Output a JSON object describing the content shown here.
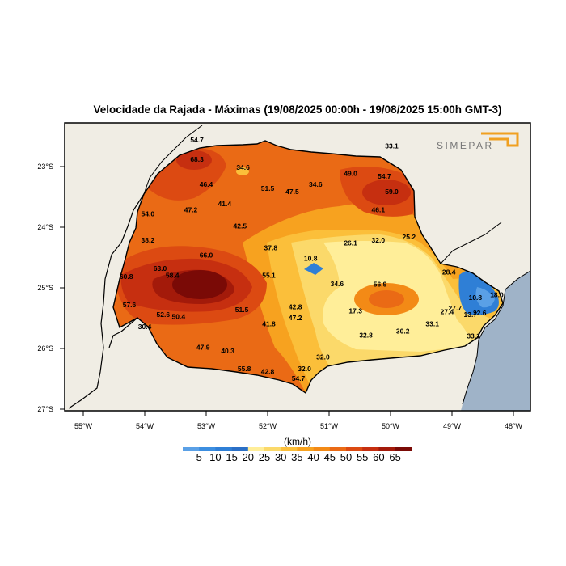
{
  "title": "Velocidade da Rajada - Máximas (19/08/2025 00:00h - 19/08/2025 15:00h GMT-3)",
  "logo_text": "SIMEPAR",
  "colors": {
    "land": "#f0ede4",
    "ocean": "#9fb3c8",
    "border": "#000000"
  },
  "lat_ticks": [
    "23°S",
    "24°S",
    "25°S",
    "26°S",
    "27°S"
  ],
  "lon_ticks": [
    "55°W",
    "54°W",
    "53°W",
    "52°W",
    "51°W",
    "50°W",
    "49°W",
    "48°W"
  ],
  "colorbar": {
    "unit": "(km/h)",
    "labels": [
      "5",
      "10",
      "15",
      "20",
      "25",
      "30",
      "35",
      "40",
      "45",
      "50",
      "55",
      "60",
      "65"
    ],
    "colors": [
      "#5aa0e6",
      "#3c8ee0",
      "#2f7fd6",
      "#2a6fc6",
      "#ffee99",
      "#fbd96a",
      "#fbbf3a",
      "#f7a21f",
      "#f38a16",
      "#ea6a15",
      "#dc4a12",
      "#c62f10",
      "#a31a0a",
      "#7a0a06"
    ]
  },
  "values": [
    {
      "text": "54.7",
      "lon": -53.15,
      "lat": -22.6
    },
    {
      "text": "68.3",
      "lon": -53.15,
      "lat": -22.92
    },
    {
      "text": "34.6",
      "lon": -52.4,
      "lat": -23.05
    },
    {
      "text": "46.4",
      "lon": -53.0,
      "lat": -23.33
    },
    {
      "text": "51.5",
      "lon": -52.0,
      "lat": -23.4
    },
    {
      "text": "47.5",
      "lon": -51.6,
      "lat": -23.45
    },
    {
      "text": "34.6",
      "lon": -51.22,
      "lat": -23.33
    },
    {
      "text": "49.0",
      "lon": -50.65,
      "lat": -23.15
    },
    {
      "text": "54.7",
      "lon": -50.1,
      "lat": -23.2
    },
    {
      "text": "59.0",
      "lon": -49.98,
      "lat": -23.45
    },
    {
      "text": "33.1",
      "lon": -49.98,
      "lat": -22.7
    },
    {
      "text": "47.2",
      "lon": -53.25,
      "lat": -23.75
    },
    {
      "text": "41.4",
      "lon": -52.7,
      "lat": -23.65
    },
    {
      "text": "46.1",
      "lon": -50.2,
      "lat": -23.75
    },
    {
      "text": "54.0",
      "lon": -53.95,
      "lat": -23.82
    },
    {
      "text": "42.5",
      "lon": -52.45,
      "lat": -24.02
    },
    {
      "text": "25.2",
      "lon": -49.7,
      "lat": -24.2
    },
    {
      "text": "38.2",
      "lon": -53.95,
      "lat": -24.25
    },
    {
      "text": "26.1",
      "lon": -50.65,
      "lat": -24.3
    },
    {
      "text": "32.0",
      "lon": -50.2,
      "lat": -24.25
    },
    {
      "text": "37.8",
      "lon": -51.95,
      "lat": -24.38
    },
    {
      "text": "10.8",
      "lon": -51.3,
      "lat": -24.55
    },
    {
      "text": "66.0",
      "lon": -53.0,
      "lat": -24.5
    },
    {
      "text": "63.0",
      "lon": -53.75,
      "lat": -24.72
    },
    {
      "text": "60.8",
      "lon": -54.3,
      "lat": -24.85
    },
    {
      "text": "58.4",
      "lon": -53.55,
      "lat": -24.83
    },
    {
      "text": "55.1",
      "lon": -51.98,
      "lat": -24.83
    },
    {
      "text": "28.4",
      "lon": -49.05,
      "lat": -24.78
    },
    {
      "text": "34.6",
      "lon": -50.87,
      "lat": -24.97
    },
    {
      "text": "56.9",
      "lon": -50.17,
      "lat": -24.98
    },
    {
      "text": "10.8",
      "lon": -48.62,
      "lat": -25.2
    },
    {
      "text": "18.0",
      "lon": -48.27,
      "lat": -25.15
    },
    {
      "text": "57.6",
      "lon": -54.25,
      "lat": -25.32
    },
    {
      "text": "42.8",
      "lon": -51.55,
      "lat": -25.35
    },
    {
      "text": "51.5",
      "lon": -52.42,
      "lat": -25.4
    },
    {
      "text": "17.3",
      "lon": -50.57,
      "lat": -25.42
    },
    {
      "text": "27.7",
      "lon": -48.95,
      "lat": -25.37
    },
    {
      "text": "27.4",
      "lon": -49.08,
      "lat": -25.43
    },
    {
      "text": "52.6",
      "lon": -53.7,
      "lat": -25.48
    },
    {
      "text": "50.4",
      "lon": -53.45,
      "lat": -25.51
    },
    {
      "text": "47.2",
      "lon": -51.55,
      "lat": -25.53
    },
    {
      "text": "13.7",
      "lon": -48.7,
      "lat": -25.48
    },
    {
      "text": "22.6",
      "lon": -48.55,
      "lat": -25.45
    },
    {
      "text": "41.8",
      "lon": -51.98,
      "lat": -25.63
    },
    {
      "text": "33.1",
      "lon": -49.32,
      "lat": -25.63
    },
    {
      "text": "30.4",
      "lon": -54.0,
      "lat": -25.68
    },
    {
      "text": "32.8",
      "lon": -50.4,
      "lat": -25.82
    },
    {
      "text": "30.2",
      "lon": -49.8,
      "lat": -25.75
    },
    {
      "text": "33.1",
      "lon": -48.65,
      "lat": -25.83
    },
    {
      "text": "47.9",
      "lon": -53.05,
      "lat": -26.02
    },
    {
      "text": "40.3",
      "lon": -52.65,
      "lat": -26.08
    },
    {
      "text": "32.0",
      "lon": -51.1,
      "lat": -26.18
    },
    {
      "text": "55.8",
      "lon": -52.38,
      "lat": -26.37
    },
    {
      "text": "42.8",
      "lon": -52.0,
      "lat": -26.42
    },
    {
      "text": "32.0",
      "lon": -51.4,
      "lat": -26.37
    },
    {
      "text": "54.7",
      "lon": -51.5,
      "lat": -26.53
    }
  ]
}
